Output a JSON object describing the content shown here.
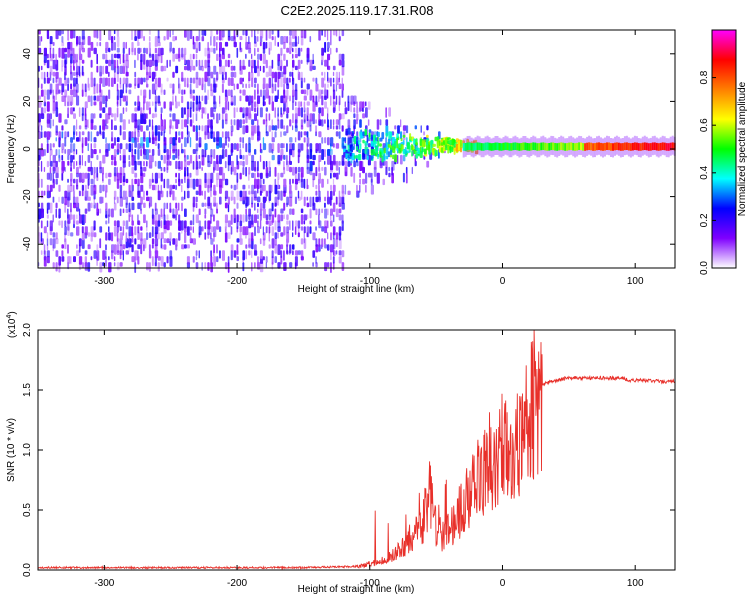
{
  "title": "C2E2.2025.119.17.31.R08",
  "chart_data": [
    {
      "type": "heatmap",
      "xlabel": "Height of straight line (km)",
      "ylabel": "Frequency (Hz)",
      "xlim": [
        -350,
        130
      ],
      "ylim": [
        -50,
        50
      ],
      "xticks": [
        -300,
        -200,
        -100,
        0,
        100
      ],
      "yticks": [
        -40,
        -20,
        0,
        20,
        40
      ],
      "colorbar": {
        "label": "Normalized spectral amplitude",
        "range": [
          0,
          1
        ],
        "ticks": [
          "0.0",
          "0.2",
          "0.4",
          "0.6",
          "0.8"
        ],
        "colors": [
          "#ffffff",
          "#7f00ff",
          "#0000ff",
          "#00ffff",
          "#00ff00",
          "#ffff00",
          "#ff7f00",
          "#ff0000",
          "#ff00ff"
        ]
      },
      "signal": {
        "center_frequency_hz": 1,
        "noise_region_x": [
          -350,
          -120
        ],
        "transition_x": [
          -120,
          -30
        ],
        "tone_region_x": [
          -30,
          130
        ],
        "peak_amplitude_x": [
          60,
          130
        ],
        "peak_amplitude": 0.9
      }
    },
    {
      "type": "line",
      "xlabel": "Height of straight line (km)",
      "ylabel": "SNR (10 * v/v)",
      "y_multiplier": "(x10",
      "y_multiplier_exp": "4",
      "y_multiplier_close": ")",
      "xlim": [
        -350,
        130
      ],
      "ylim": [
        0,
        2.0
      ],
      "xticks": [
        -300,
        -200,
        -100,
        0,
        100
      ],
      "yticks": [
        "0.0",
        "0.5",
        "1.0",
        "1.5",
        "2.0"
      ],
      "grid": false,
      "series": [
        {
          "color": "#e8302a",
          "x": [
            -350,
            -300,
            -250,
            -200,
            -150,
            -110,
            -100,
            -90,
            -80,
            -70,
            -60,
            -55,
            -50,
            -45,
            -40,
            -35,
            -30,
            -25,
            -20,
            -15,
            -10,
            -5,
            0,
            5,
            10,
            15,
            20,
            30,
            40,
            50,
            60,
            70,
            80,
            90,
            95,
            100,
            110,
            120,
            130
          ],
          "y": [
            0.02,
            0.02,
            0.02,
            0.02,
            0.02,
            0.03,
            0.05,
            0.08,
            0.15,
            0.25,
            0.4,
            0.7,
            0.35,
            0.3,
            0.35,
            0.45,
            0.55,
            0.65,
            0.75,
            0.85,
            0.95,
            0.9,
            1.0,
            1.05,
            1.1,
            1.3,
            1.45,
            1.55,
            1.58,
            1.6,
            1.6,
            1.6,
            1.6,
            1.6,
            1.58,
            1.58,
            1.58,
            1.57,
            1.57
          ]
        }
      ]
    }
  ]
}
